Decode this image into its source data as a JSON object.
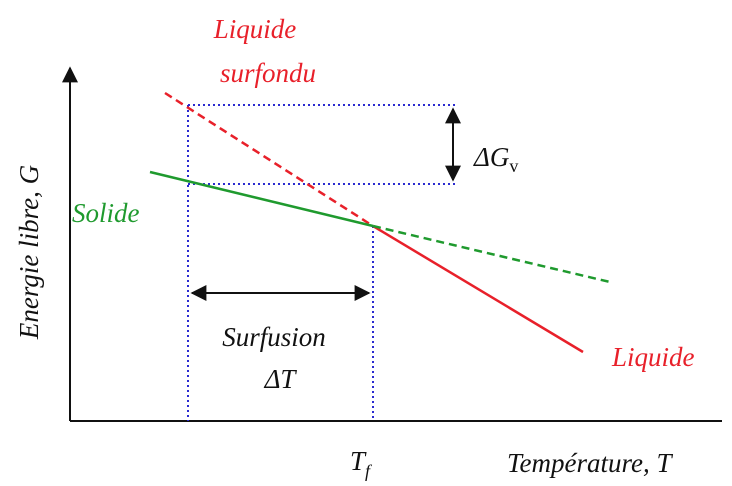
{
  "labels": {
    "liquide_surfondu_1": "Liquide",
    "liquide_surfondu_2": "surfondu",
    "delta_g": {
      "main": "ΔG",
      "sub": "v"
    },
    "solide": "Solide",
    "surfusion": "Surfusion",
    "delta_t": "ΔT",
    "liquide": "Liquide",
    "y_axis": "Energie libre, G",
    "tf": {
      "main": "T",
      "sub": "f"
    },
    "x_axis": "Température, T"
  }
}
